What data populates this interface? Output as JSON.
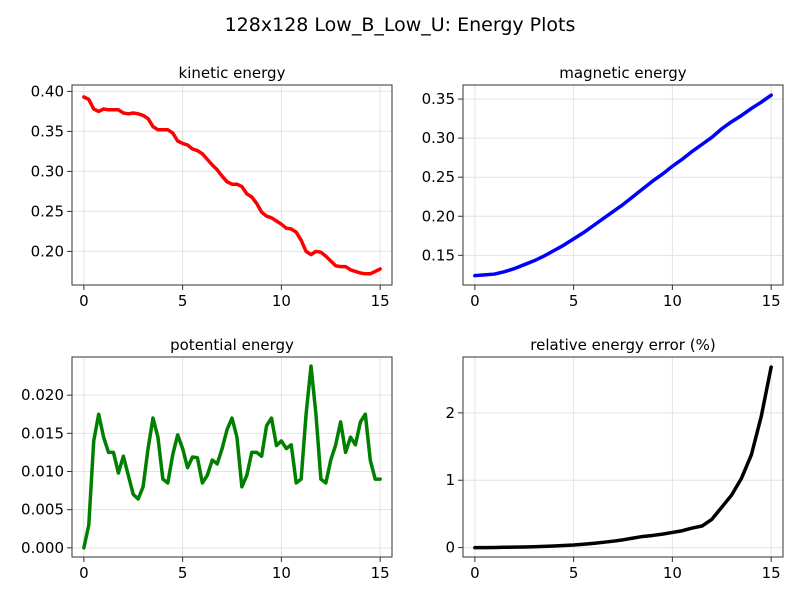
{
  "figure": {
    "suptitle": "128x128 Low_B_Low_U: Energy Plots"
  },
  "chart_data": [
    {
      "type": "line",
      "title": "kinetic energy",
      "xlabel": "",
      "ylabel": "",
      "xlim": [
        -0.6,
        15.6
      ],
      "ylim": [
        0.158,
        0.408
      ],
      "xticks": [
        0,
        5,
        10,
        15
      ],
      "yticks": [
        0.2,
        0.25,
        0.3,
        0.35,
        0.4
      ],
      "ytick_labels": [
        "0.20",
        "0.25",
        "0.30",
        "0.35",
        "0.40"
      ],
      "grid": true,
      "color": "#ff0000",
      "x": [
        0.0,
        0.25,
        0.5,
        0.75,
        1.0,
        1.25,
        1.5,
        1.75,
        2.0,
        2.25,
        2.5,
        2.75,
        3.0,
        3.25,
        3.5,
        3.75,
        4.0,
        4.25,
        4.5,
        4.75,
        5.0,
        5.25,
        5.5,
        5.75,
        6.0,
        6.25,
        6.5,
        6.75,
        7.0,
        7.25,
        7.5,
        7.75,
        8.0,
        8.25,
        8.5,
        8.75,
        9.0,
        9.25,
        9.5,
        9.75,
        10.0,
        10.25,
        10.5,
        10.75,
        11.0,
        11.25,
        11.5,
        11.75,
        12.0,
        12.25,
        12.5,
        12.75,
        13.0,
        13.25,
        13.5,
        13.75,
        14.0,
        14.25,
        14.5,
        14.75,
        15.0
      ],
      "y": [
        0.393,
        0.39,
        0.378,
        0.375,
        0.378,
        0.377,
        0.377,
        0.377,
        0.373,
        0.372,
        0.373,
        0.372,
        0.37,
        0.366,
        0.356,
        0.352,
        0.352,
        0.352,
        0.348,
        0.338,
        0.335,
        0.333,
        0.328,
        0.326,
        0.322,
        0.315,
        0.308,
        0.302,
        0.294,
        0.287,
        0.284,
        0.284,
        0.281,
        0.272,
        0.268,
        0.26,
        0.249,
        0.244,
        0.242,
        0.238,
        0.234,
        0.229,
        0.228,
        0.224,
        0.214,
        0.2,
        0.196,
        0.2,
        0.199,
        0.194,
        0.188,
        0.182,
        0.181,
        0.181,
        0.177,
        0.175,
        0.173,
        0.172,
        0.172,
        0.175,
        0.178
      ]
    },
    {
      "type": "line",
      "title": "magnetic energy",
      "xlabel": "",
      "ylabel": "",
      "xlim": [
        -0.6,
        15.6
      ],
      "ylim": [
        0.112,
        0.368
      ],
      "xticks": [
        0,
        5,
        10,
        15
      ],
      "yticks": [
        0.15,
        0.2,
        0.25,
        0.3,
        0.35
      ],
      "ytick_labels": [
        "0.15",
        "0.20",
        "0.25",
        "0.30",
        "0.35"
      ],
      "grid": true,
      "color": "#0000ff",
      "x": [
        0.0,
        0.5,
        1.0,
        1.5,
        2.0,
        2.5,
        3.0,
        3.5,
        4.0,
        4.5,
        5.0,
        5.5,
        6.0,
        6.5,
        7.0,
        7.5,
        8.0,
        8.5,
        9.0,
        9.5,
        10.0,
        10.5,
        11.0,
        11.5,
        12.0,
        12.5,
        13.0,
        13.5,
        14.0,
        14.5,
        15.0
      ],
      "y": [
        0.124,
        0.125,
        0.126,
        0.129,
        0.133,
        0.138,
        0.143,
        0.149,
        0.156,
        0.163,
        0.171,
        0.179,
        0.188,
        0.197,
        0.206,
        0.215,
        0.225,
        0.235,
        0.245,
        0.254,
        0.264,
        0.273,
        0.283,
        0.292,
        0.301,
        0.312,
        0.321,
        0.329,
        0.338,
        0.346,
        0.355
      ]
    },
    {
      "type": "line",
      "title": "potential energy",
      "xlabel": "",
      "ylabel": "",
      "xlim": [
        -0.6,
        15.6
      ],
      "ylim": [
        -0.0012,
        0.025
      ],
      "xticks": [
        0,
        5,
        10,
        15
      ],
      "yticks": [
        0.0,
        0.005,
        0.01,
        0.015,
        0.02
      ],
      "ytick_labels": [
        "0.000",
        "0.005",
        "0.010",
        "0.015",
        "0.020"
      ],
      "grid": true,
      "color": "#008000",
      "x": [
        0.0,
        0.25,
        0.5,
        0.75,
        1.0,
        1.25,
        1.5,
        1.75,
        2.0,
        2.25,
        2.5,
        2.75,
        3.0,
        3.25,
        3.5,
        3.75,
        4.0,
        4.25,
        4.5,
        4.75,
        5.0,
        5.25,
        5.5,
        5.75,
        6.0,
        6.25,
        6.5,
        6.75,
        7.0,
        7.25,
        7.5,
        7.75,
        8.0,
        8.25,
        8.5,
        8.75,
        9.0,
        9.25,
        9.5,
        9.75,
        10.0,
        10.25,
        10.5,
        10.75,
        11.0,
        11.25,
        11.5,
        11.75,
        12.0,
        12.25,
        12.5,
        12.75,
        13.0,
        13.25,
        13.5,
        13.75,
        14.0,
        14.25,
        14.5,
        14.75,
        15.0
      ],
      "y": [
        0.0,
        0.003,
        0.014,
        0.0175,
        0.0145,
        0.0125,
        0.0125,
        0.0098,
        0.012,
        0.0095,
        0.007,
        0.0064,
        0.008,
        0.013,
        0.017,
        0.0145,
        0.009,
        0.0085,
        0.0122,
        0.0148,
        0.013,
        0.0105,
        0.0119,
        0.0118,
        0.0085,
        0.0095,
        0.0115,
        0.011,
        0.013,
        0.0155,
        0.017,
        0.0145,
        0.008,
        0.0095,
        0.0125,
        0.0125,
        0.012,
        0.016,
        0.017,
        0.0134,
        0.014,
        0.013,
        0.0135,
        0.0085,
        0.009,
        0.0175,
        0.0238,
        0.0175,
        0.009,
        0.0085,
        0.0115,
        0.0135,
        0.0165,
        0.0125,
        0.0145,
        0.0135,
        0.0165,
        0.0175,
        0.0115,
        0.009,
        0.009
      ]
    },
    {
      "type": "line",
      "title": "relative energy error (%)",
      "xlabel": "",
      "ylabel": "",
      "xlim": [
        -0.6,
        15.6
      ],
      "ylim": [
        -0.14,
        2.83
      ],
      "xticks": [
        0,
        5,
        10,
        15
      ],
      "yticks": [
        0,
        1,
        2
      ],
      "ytick_labels": [
        "0",
        "1",
        "2"
      ],
      "grid": true,
      "color": "#000000",
      "x": [
        0.0,
        0.5,
        1.0,
        1.5,
        2.0,
        2.5,
        3.0,
        3.5,
        4.0,
        4.5,
        5.0,
        5.5,
        6.0,
        6.5,
        7.0,
        7.5,
        8.0,
        8.5,
        9.0,
        9.5,
        10.0,
        10.5,
        11.0,
        11.5,
        12.0,
        12.5,
        13.0,
        13.5,
        14.0,
        14.5,
        15.0
      ],
      "y": [
        0.0,
        0.0,
        0.002,
        0.004,
        0.006,
        0.009,
        0.013,
        0.018,
        0.024,
        0.03,
        0.038,
        0.05,
        0.063,
        0.078,
        0.095,
        0.115,
        0.14,
        0.165,
        0.18,
        0.2,
        0.225,
        0.25,
        0.29,
        0.32,
        0.42,
        0.6,
        0.78,
        1.03,
        1.38,
        1.95,
        2.68
      ]
    }
  ]
}
